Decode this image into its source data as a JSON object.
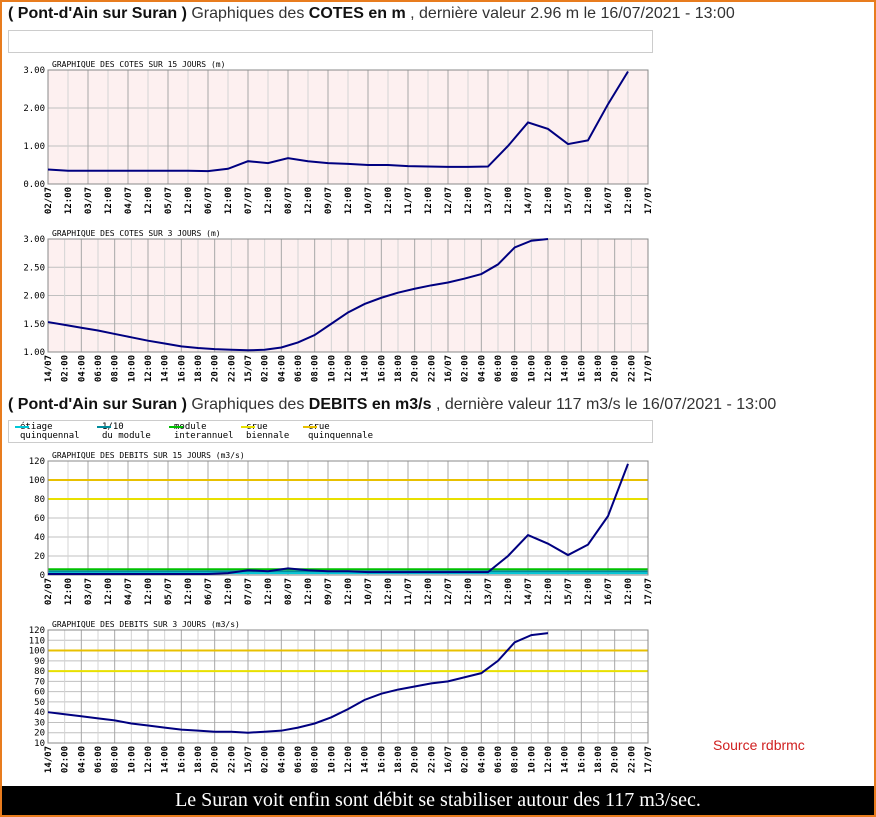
{
  "header_cotes": {
    "site": "( Pont-d'Ain sur Suran )",
    "prefix": "Graphiques des",
    "measure": "COTES en m",
    "suffix": ", dernière valeur 2.96 m le 16/07/2021 - 13:00"
  },
  "header_debits": {
    "site": "( Pont-d'Ain sur Suran )",
    "prefix": "Graphiques des",
    "measure": "DEBITS en m3/s",
    "suffix": ", dernière valeur 117 m3/s le 16/07/2021 - 13:00"
  },
  "legend": [
    {
      "name": "étiage\nquinquennal",
      "color": "#00c8d8"
    },
    {
      "name": "1/10\ndu module",
      "color": "#008c9c"
    },
    {
      "name": "module\ninterannuel",
      "color": "#00c000"
    },
    {
      "name": "crue\nbiennale",
      "color": "#e8e000"
    },
    {
      "name": "crue\nquinquennale",
      "color": "#e8c000"
    }
  ],
  "source": "Source rdbrmc",
  "caption": "Le Suran voit enfin sont débit se stabiliser autour des 117 m3/sec.",
  "chart_data": [
    {
      "type": "line",
      "title": "GRAPHIQUE DES COTES SUR 15 JOURS (m)",
      "background": "#fdf0f0",
      "grid": true,
      "categories": [
        "02/07",
        "12:00",
        "03/07",
        "12:00",
        "04/07",
        "12:00",
        "05/07",
        "12:00",
        "06/07",
        "12:00",
        "07/07",
        "12:00",
        "08/07",
        "12:00",
        "09/07",
        "12:00",
        "10/07",
        "12:00",
        "11/07",
        "12:00",
        "12/07",
        "12:00",
        "13/07",
        "12:00",
        "14/07",
        "12:00",
        "15/07",
        "12:00",
        "16/07",
        "12:00",
        "17/07"
      ],
      "series": [
        {
          "color": "#000080",
          "values": [
            0.38,
            0.35,
            0.35,
            0.35,
            0.35,
            0.35,
            0.35,
            0.35,
            0.34,
            0.4,
            0.6,
            0.55,
            0.68,
            0.6,
            0.55,
            0.53,
            0.5,
            0.5,
            0.47,
            0.46,
            0.45,
            0.45,
            0.46,
            1.0,
            1.62,
            1.45,
            1.05,
            1.15,
            2.1,
            2.96,
            null
          ]
        }
      ],
      "ylim": [
        0,
        3
      ],
      "yticks": [
        {
          "value": 0,
          "label": "0.00"
        },
        {
          "value": 1,
          "label": "1.00"
        },
        {
          "value": 2,
          "label": "2.00"
        },
        {
          "value": 3,
          "label": "3.00"
        }
      ],
      "reference_lines": []
    },
    {
      "type": "line",
      "title": "GRAPHIQUE DES COTES SUR 3 JOURS (m)",
      "background": "#fdf0f0",
      "grid": true,
      "categories": [
        "14/07",
        "02:00",
        "04:00",
        "06:00",
        "08:00",
        "10:00",
        "12:00",
        "14:00",
        "16:00",
        "18:00",
        "20:00",
        "22:00",
        "15/07",
        "02:00",
        "04:00",
        "06:00",
        "08:00",
        "10:00",
        "12:00",
        "14:00",
        "16:00",
        "18:00",
        "20:00",
        "22:00",
        "16/07",
        "02:00",
        "04:00",
        "06:00",
        "08:00",
        "10:00",
        "12:00",
        "14:00",
        "16:00",
        "18:00",
        "20:00",
        "22:00",
        "17/07"
      ],
      "series": [
        {
          "color": "#000080",
          "values": [
            1.53,
            1.48,
            1.43,
            1.38,
            1.32,
            1.26,
            1.2,
            1.15,
            1.1,
            1.07,
            1.05,
            1.04,
            1.03,
            1.04,
            1.08,
            1.17,
            1.3,
            1.5,
            1.7,
            1.85,
            1.96,
            2.05,
            2.12,
            2.18,
            2.23,
            2.3,
            2.38,
            2.55,
            2.85,
            2.97,
            3.0,
            null,
            null,
            null,
            null,
            null,
            null
          ]
        }
      ],
      "ylim": [
        1,
        3
      ],
      "yticks": [
        {
          "value": 1,
          "label": "1.00"
        },
        {
          "value": 1.5,
          "label": "1.50"
        },
        {
          "value": 2,
          "label": "2.00"
        },
        {
          "value": 2.5,
          "label": "2.50"
        },
        {
          "value": 3,
          "label": "3.00"
        }
      ],
      "reference_lines": []
    },
    {
      "type": "line",
      "title": "GRAPHIQUE DES DEBITS SUR 15 JOURS (m3/s)",
      "background": "#ffffff",
      "grid": true,
      "categories": [
        "02/07",
        "12:00",
        "03/07",
        "12:00",
        "04/07",
        "12:00",
        "05/07",
        "12:00",
        "06/07",
        "12:00",
        "07/07",
        "12:00",
        "08/07",
        "12:00",
        "09/07",
        "12:00",
        "10/07",
        "12:00",
        "11/07",
        "12:00",
        "12/07",
        "12:00",
        "13/07",
        "12:00",
        "14/07",
        "12:00",
        "15/07",
        "12:00",
        "16/07",
        "12:00",
        "17/07"
      ],
      "series": [
        {
          "color": "#000080",
          "values": [
            1,
            1,
            1,
            1,
            1,
            1,
            1,
            1,
            1,
            2,
            5,
            4,
            7,
            5,
            4,
            4,
            3,
            3,
            3,
            3,
            3,
            3,
            3,
            20,
            42,
            33,
            21,
            32,
            62,
            117,
            null
          ]
        }
      ],
      "ylim": [
        0,
        120
      ],
      "yticks": [
        0,
        20,
        40,
        60,
        80,
        100,
        120
      ],
      "reference_lines": [
        {
          "value": 2,
          "color": "#00c8d8"
        },
        {
          "value": 4,
          "color": "#008c9c"
        },
        {
          "value": 6,
          "color": "#00c000"
        },
        {
          "value": 80,
          "color": "#e8e000"
        },
        {
          "value": 100,
          "color": "#e8c000"
        }
      ]
    },
    {
      "type": "line",
      "title": "GRAPHIQUE DES DEBITS SUR 3 JOURS (m3/s)",
      "background": "#ffffff",
      "grid": true,
      "categories": [
        "14/07",
        "02:00",
        "04:00",
        "06:00",
        "08:00",
        "10:00",
        "12:00",
        "14:00",
        "16:00",
        "18:00",
        "20:00",
        "22:00",
        "15/07",
        "02:00",
        "04:00",
        "06:00",
        "08:00",
        "10:00",
        "12:00",
        "14:00",
        "16:00",
        "18:00",
        "20:00",
        "22:00",
        "16/07",
        "02:00",
        "04:00",
        "06:00",
        "08:00",
        "10:00",
        "12:00",
        "14:00",
        "16:00",
        "18:00",
        "20:00",
        "22:00",
        "17/07"
      ],
      "series": [
        {
          "color": "#000080",
          "values": [
            40,
            38,
            36,
            34,
            32,
            29,
            27,
            25,
            23,
            22,
            21,
            21,
            20,
            21,
            22,
            25,
            29,
            35,
            43,
            52,
            58,
            62,
            65,
            68,
            70,
            74,
            78,
            90,
            108,
            115,
            117,
            null,
            null,
            null,
            null,
            null,
            null
          ]
        }
      ],
      "ylim": [
        10,
        120
      ],
      "yticks": [
        10,
        20,
        30,
        40,
        50,
        60,
        70,
        80,
        90,
        100,
        110,
        120
      ],
      "reference_lines": [
        {
          "value": 80,
          "color": "#e8e000"
        },
        {
          "value": 100,
          "color": "#e8c000"
        }
      ]
    }
  ]
}
